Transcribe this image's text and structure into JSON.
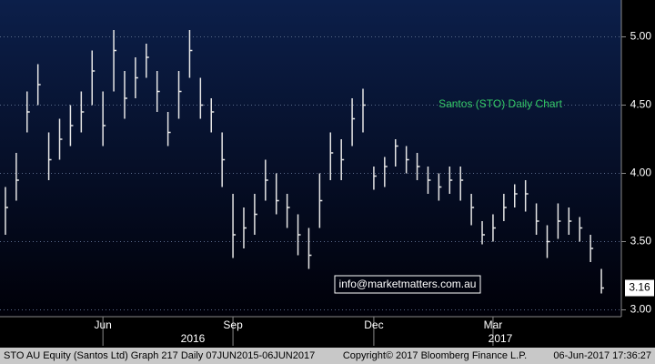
{
  "chart_data": {
    "type": "ohlc",
    "title": "Santos (STO) Daily Chart",
    "annotation": "info@marketmatters.com.au",
    "footer": [
      "STO AU Equity (Santos Ltd) Graph 217  Daily 07JUN2015-06JUN2017",
      "Copyright© 2017 Bloomberg Finance L.P.",
      "06-Jun-2017 17:36:27"
    ],
    "categories": [
      null,
      null,
      null,
      null,
      null,
      null,
      null,
      null,
      null,
      "Jun",
      null,
      null,
      null,
      null,
      null,
      null,
      null,
      null,
      null,
      null,
      null,
      "Sep",
      null,
      null,
      null,
      null,
      null,
      null,
      null,
      null,
      null,
      null,
      null,
      null,
      "Dec",
      null,
      null,
      null,
      null,
      null,
      null,
      null,
      null,
      null,
      null,
      "Mar",
      null,
      null,
      null,
      null,
      null,
      null,
      null,
      null,
      null,
      null
    ],
    "years": [
      "2016",
      "2017"
    ],
    "series": [
      {
        "name": "STO AU Equity",
        "color": "#e6e6e6",
        "close": [
          3.75,
          3.95,
          4.45,
          4.65,
          4.1,
          4.25,
          4.35,
          4.45,
          4.75,
          4.35,
          4.9,
          4.55,
          4.7,
          4.85,
          4.6,
          4.3,
          4.6,
          4.9,
          4.5,
          4.45,
          4.1,
          3.55,
          3.6,
          3.7,
          3.95,
          3.8,
          3.75,
          3.55,
          3.4,
          3.8,
          4.15,
          4.1,
          4.4,
          4.5,
          3.98,
          4.05,
          4.2,
          4.1,
          4.05,
          3.95,
          3.9,
          3.95,
          3.95,
          3.75,
          3.55,
          3.6,
          3.75,
          3.85,
          3.85,
          3.65,
          3.5,
          3.65,
          3.65,
          3.6,
          3.45,
          3.16
        ],
        "high": [
          3.9,
          4.15,
          4.6,
          4.8,
          4.3,
          4.4,
          4.5,
          4.6,
          4.9,
          4.6,
          5.05,
          4.75,
          4.85,
          4.95,
          4.75,
          4.45,
          4.75,
          5.05,
          4.7,
          4.55,
          4.3,
          3.85,
          3.75,
          3.85,
          4.1,
          4.0,
          3.85,
          3.7,
          3.6,
          4.0,
          4.3,
          4.25,
          4.55,
          4.62,
          4.05,
          4.12,
          4.25,
          4.2,
          4.15,
          4.05,
          4.0,
          4.05,
          4.05,
          3.85,
          3.65,
          3.7,
          3.85,
          3.92,
          3.95,
          3.78,
          3.62,
          3.78,
          3.75,
          3.68,
          3.55,
          3.3
        ],
        "low": [
          3.55,
          3.8,
          4.3,
          4.5,
          3.95,
          4.1,
          4.2,
          4.3,
          4.5,
          4.2,
          4.6,
          4.4,
          4.55,
          4.7,
          4.45,
          4.2,
          4.4,
          4.7,
          4.4,
          4.3,
          3.9,
          3.38,
          3.45,
          3.55,
          3.8,
          3.7,
          3.6,
          3.4,
          3.3,
          3.6,
          3.95,
          3.95,
          4.2,
          4.3,
          3.88,
          3.9,
          4.05,
          4.0,
          3.95,
          3.85,
          3.8,
          3.85,
          3.8,
          3.62,
          3.48,
          3.5,
          3.65,
          3.75,
          3.72,
          3.55,
          3.38,
          3.52,
          3.55,
          3.5,
          3.35,
          3.12
        ]
      }
    ],
    "last_price": 3.16,
    "ylim": [
      2.95,
      5.27
    ],
    "yticks": [
      {
        "value": 3,
        "label": "3.00"
      },
      {
        "value": 3.5,
        "label": "3.50"
      },
      {
        "value": 4,
        "label": "4.00"
      },
      {
        "value": 4.5,
        "label": "4.50"
      },
      {
        "value": 5,
        "label": "5.00"
      }
    ],
    "grid": true
  }
}
